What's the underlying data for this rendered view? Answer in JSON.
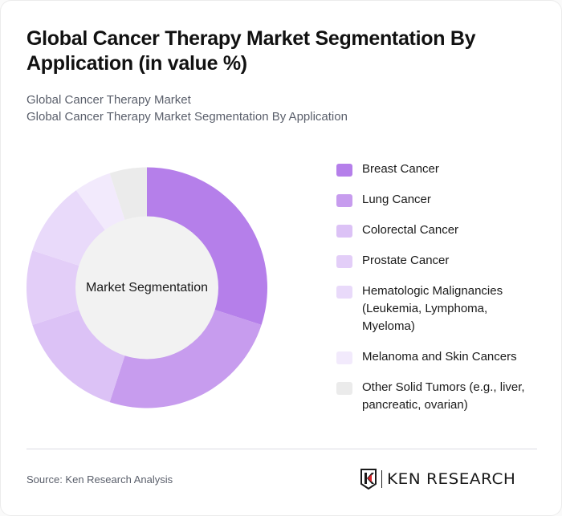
{
  "header": {
    "title": "Global Cancer Therapy Market Segmentation By Application (in value %)",
    "subtitle_line1": "Global Cancer Therapy Market",
    "subtitle_line2": "Global Cancer Therapy Market Segmentation By Application"
  },
  "chart_data": {
    "type": "pie",
    "variant": "donut",
    "title": "Global Cancer Therapy Market Segmentation By Application (in value %)",
    "center_label": "Market Segmentation",
    "categories": [
      "Breast Cancer",
      "Lung Cancer",
      "Colorectal Cancer",
      "Prostate Cancer",
      "Hematologic Malignancies (Leukemia, Lymphoma, Myeloma)",
      "Melanoma and Skin Cancers",
      "Other Solid Tumors (e.g., liver, pancreatic, ovarian)"
    ],
    "values": [
      30,
      25,
      15,
      10,
      10,
      5,
      5
    ],
    "unit": "%",
    "colors": [
      "#b57fea",
      "#c79cee",
      "#dcc2f6",
      "#e3cef8",
      "#e9dafa",
      "#f2eafc",
      "#ebebeb"
    ],
    "start_angle_deg": 0,
    "direction": "clockwise",
    "legend_position": "right",
    "data_labels_shown": false
  },
  "legend": {
    "items": [
      {
        "label": "Breast Cancer",
        "color": "#b57fea"
      },
      {
        "label": "Lung Cancer",
        "color": "#c79cee"
      },
      {
        "label": "Colorectal Cancer",
        "color": "#dcc2f6"
      },
      {
        "label": "Prostate Cancer",
        "color": "#e3cef8"
      },
      {
        "label": "Hematologic Malignancies (Leukemia, Lymphoma, Myeloma)",
        "color": "#e9dafa"
      },
      {
        "label": "Melanoma and Skin Cancers",
        "color": "#f2eafc"
      },
      {
        "label": "Other Solid Tumors (e.g., liver, pancreatic, ovarian)",
        "color": "#ebebeb"
      }
    ]
  },
  "footer": {
    "source": "Source: Ken Research Analysis",
    "logo_text": "KEN RESEARCH",
    "logo_accent_color": "#d9262c"
  },
  "colors": {
    "center_fill": "#f2f2f2",
    "divider": "#dcdce3",
    "title_text": "#111111",
    "subtitle_text": "#5a5f6b"
  }
}
